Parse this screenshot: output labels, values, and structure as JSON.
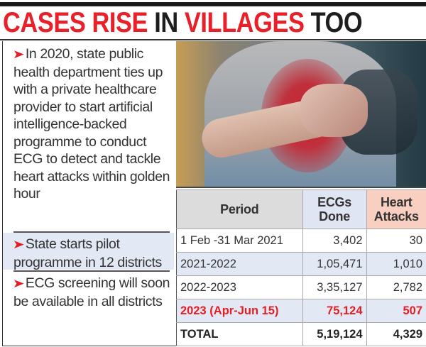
{
  "headline": {
    "parts": [
      {
        "text": "CASES RISE ",
        "color": "#e8202a"
      },
      {
        "text": "IN ",
        "color": "#1e1e1e"
      },
      {
        "text": "VILLAGES ",
        "color": "#e8202a"
      },
      {
        "text": "TOO",
        "color": "#1e1e1e"
      }
    ]
  },
  "bullets": [
    {
      "arrow": "➤",
      "text": "In 2020, state public health department ties up with a private healthcare provider to start artificial intelligence-backed programme to conduct ECG to detect and tackle heart attacks within golden hour"
    },
    {
      "arrow": "➤",
      "text": "State starts pilot programme in 12 districts"
    },
    {
      "arrow": "➤",
      "text": "ECG screening will soon be available in all districts"
    }
  ],
  "photo": {
    "description": "man clutching chest in pain"
  },
  "chart_data": {
    "type": "table",
    "title": "CASES RISE IN VILLAGES TOO",
    "columns": [
      "Period",
      "ECGs Done",
      "Heart Attacks"
    ],
    "header_colors": {
      "Period": "#dcdcdc",
      "ECGs Done": "#dfe5f3",
      "Heart Attacks": "#f8cfc0"
    },
    "rows": [
      {
        "period": "1 Feb -31 Mar 2021",
        "ecgs": "3,402",
        "heart_attacks": "30"
      },
      {
        "period": "2021-2022",
        "ecgs": "1,05,471",
        "heart_attacks": "1,010"
      },
      {
        "period": "2022-2023",
        "ecgs": "3,35,127",
        "heart_attacks": "2,782"
      },
      {
        "period": "2023 (Apr-Jun 15)",
        "ecgs": "75,124",
        "heart_attacks": "507",
        "highlight_color": "#e31e24"
      },
      {
        "period": "TOTAL",
        "ecgs": "5,19,124",
        "heart_attacks": "4,329"
      }
    ],
    "numeric_values": {
      "ecgs_done": [
        3402,
        105471,
        335127,
        75124,
        519124
      ],
      "heart_attacks": [
        30,
        1010,
        2782,
        507,
        4329
      ]
    }
  }
}
